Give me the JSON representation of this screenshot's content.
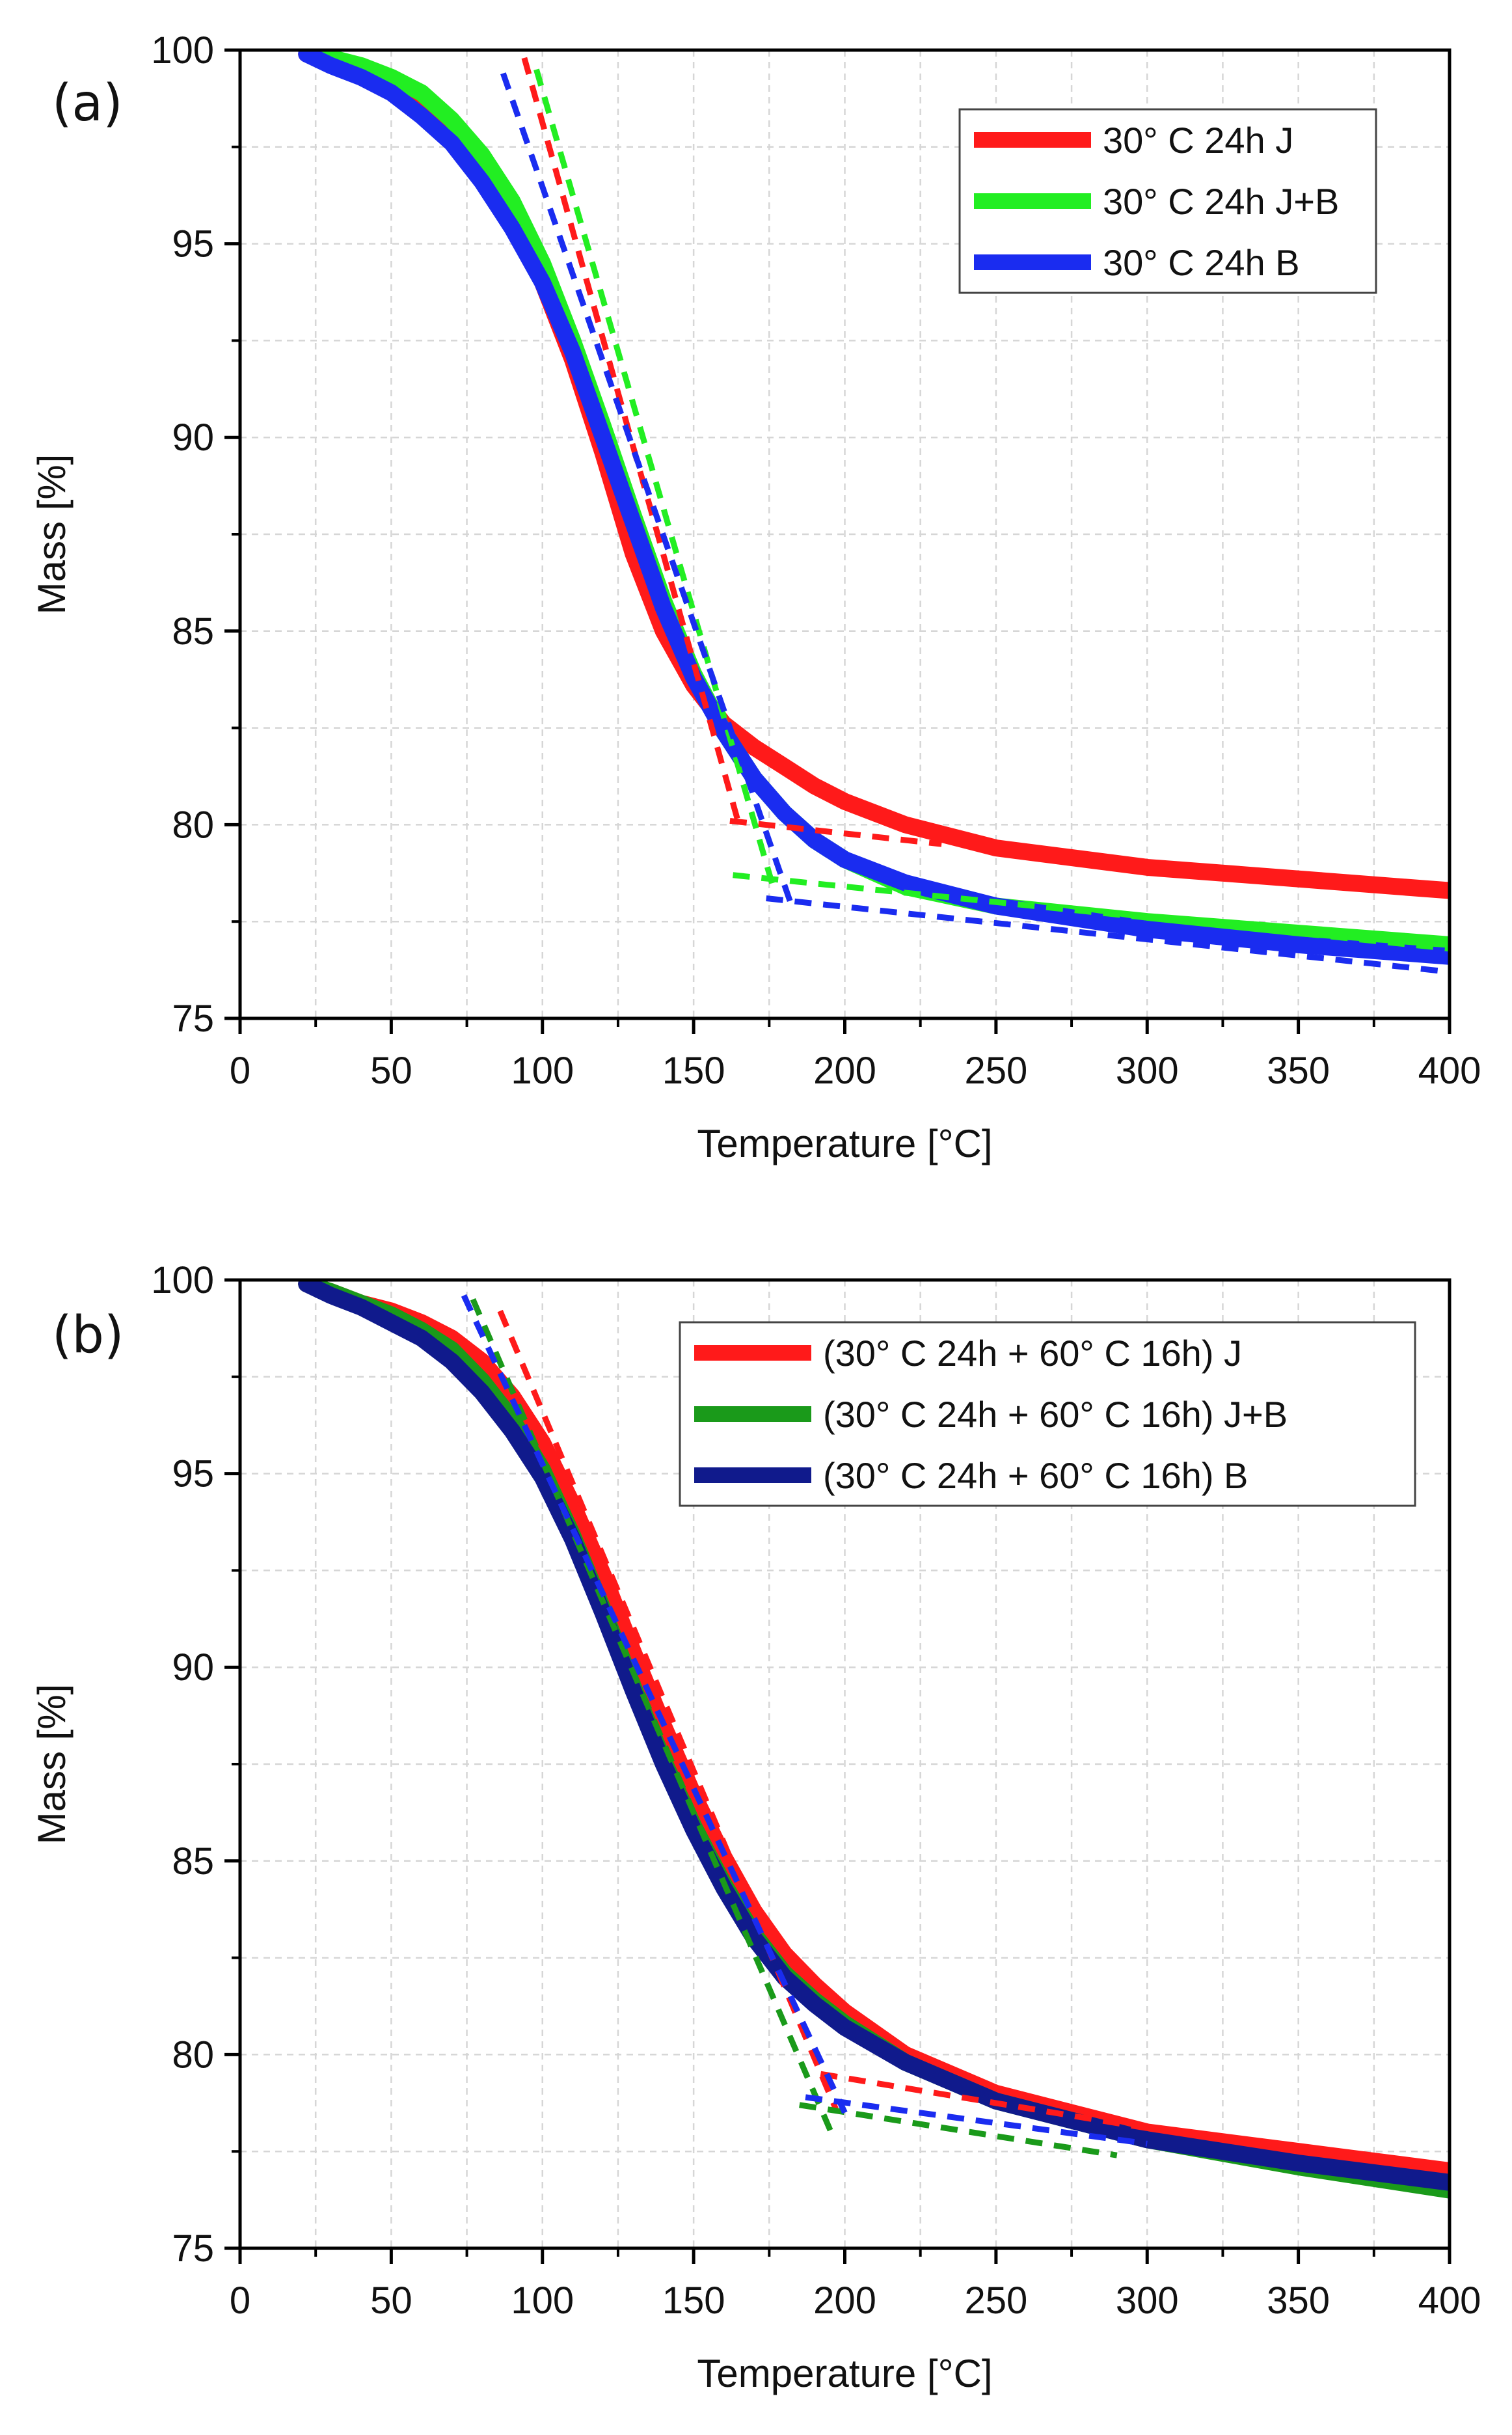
{
  "chart_data": [
    {
      "type": "line",
      "panel_label": "(a)",
      "xlabel": "Temperature [°C]",
      "ylabel": "Mass [%]",
      "xlim": [
        0,
        400
      ],
      "ylim": [
        75,
        100
      ],
      "xticks": [
        0,
        50,
        100,
        150,
        200,
        250,
        300,
        350,
        400
      ],
      "yticks": [
        75,
        80,
        85,
        90,
        95,
        100
      ],
      "grid": true,
      "legend_position": "top-right",
      "series": [
        {
          "name": "30° C 24h J",
          "color": "#ff1a1a",
          "x": [
            22,
            30,
            40,
            50,
            60,
            70,
            80,
            90,
            100,
            110,
            120,
            130,
            140,
            150,
            160,
            170,
            180,
            190,
            200,
            220,
            250,
            300,
            350,
            400
          ],
          "y": [
            99.9,
            99.7,
            99.4,
            99.0,
            98.5,
            97.8,
            96.9,
            95.6,
            94.0,
            92.0,
            89.6,
            87.0,
            85.0,
            83.6,
            82.6,
            82.0,
            81.5,
            81.0,
            80.6,
            80.0,
            79.4,
            78.9,
            78.6,
            78.3
          ]
        },
        {
          "name": "30° C 24h J+B",
          "color": "#22ee22",
          "x": [
            22,
            30,
            40,
            50,
            60,
            70,
            80,
            90,
            100,
            110,
            120,
            130,
            140,
            150,
            160,
            170,
            180,
            190,
            200,
            220,
            250,
            300,
            350,
            400
          ],
          "y": [
            100.0,
            99.8,
            99.6,
            99.3,
            98.9,
            98.2,
            97.3,
            96.1,
            94.5,
            92.5,
            90.3,
            88.0,
            85.8,
            83.9,
            82.4,
            81.2,
            80.3,
            79.6,
            79.1,
            78.4,
            77.9,
            77.5,
            77.2,
            76.9
          ]
        },
        {
          "name": "30° C 24h B",
          "color": "#1a2cf0",
          "x": [
            22,
            30,
            40,
            50,
            60,
            70,
            80,
            90,
            100,
            110,
            120,
            130,
            140,
            150,
            160,
            170,
            180,
            190,
            200,
            220,
            250,
            300,
            350,
            400
          ],
          "y": [
            99.9,
            99.6,
            99.3,
            98.9,
            98.3,
            97.6,
            96.6,
            95.4,
            94.0,
            92.2,
            90.0,
            87.8,
            85.6,
            83.8,
            82.4,
            81.2,
            80.3,
            79.6,
            79.1,
            78.5,
            77.9,
            77.3,
            76.9,
            76.6
          ]
        }
      ],
      "tangent_lines": [
        {
          "color": "#ff1a1a",
          "x": [
            94,
            165
          ],
          "y": [
            99.8,
            80.0
          ]
        },
        {
          "color": "#ff1a1a",
          "x": [
            162,
            232
          ],
          "y": [
            80.1,
            79.5
          ]
        },
        {
          "color": "#22ee22",
          "x": [
            98,
            177
          ],
          "y": [
            99.5,
            78.2
          ]
        },
        {
          "color": "#22ee22",
          "x": [
            163,
            400
          ],
          "y": [
            78.7,
            76.8
          ]
        },
        {
          "color": "#1a2cf0",
          "x": [
            87,
            182
          ],
          "y": [
            99.4,
            78.0
          ]
        },
        {
          "color": "#1a2cf0",
          "x": [
            174,
            400
          ],
          "y": [
            78.1,
            76.2
          ]
        }
      ]
    },
    {
      "type": "line",
      "panel_label": "(b)",
      "xlabel": "Temperature [°C]",
      "ylabel": "Mass [%]",
      "xlim": [
        0,
        400
      ],
      "ylim": [
        75,
        100
      ],
      "xticks": [
        0,
        50,
        100,
        150,
        200,
        250,
        300,
        350,
        400
      ],
      "yticks": [
        75,
        80,
        85,
        90,
        95,
        100
      ],
      "grid": true,
      "legend_position": "top-right",
      "series": [
        {
          "name": "(30° C 24h + 60° C 16h) J",
          "color": "#ff1a1a",
          "x": [
            22,
            30,
            40,
            50,
            60,
            70,
            80,
            90,
            100,
            110,
            120,
            130,
            140,
            150,
            160,
            170,
            180,
            190,
            200,
            220,
            250,
            300,
            350,
            400
          ],
          "y": [
            99.9,
            99.7,
            99.4,
            99.2,
            98.9,
            98.5,
            97.9,
            97.0,
            95.8,
            94.2,
            92.4,
            90.4,
            88.5,
            86.7,
            85.1,
            83.7,
            82.6,
            81.8,
            81.1,
            80.0,
            79.0,
            78.0,
            77.5,
            77.0
          ]
        },
        {
          "name": "(30° C 24h + 60° C 16h) J+B",
          "color": "#1a9a1a",
          "x": [
            22,
            30,
            40,
            50,
            60,
            70,
            80,
            90,
            100,
            110,
            120,
            130,
            140,
            150,
            160,
            170,
            180,
            190,
            200,
            220,
            250,
            300,
            350,
            400
          ],
          "y": [
            99.9,
            99.7,
            99.4,
            99.1,
            98.7,
            98.2,
            97.4,
            96.4,
            95.1,
            93.4,
            91.5,
            89.5,
            87.6,
            85.9,
            84.4,
            83.1,
            82.1,
            81.4,
            80.8,
            79.8,
            78.8,
            77.8,
            77.1,
            76.5
          ]
        },
        {
          "name": "(30° C 24h + 60° C 16h) B",
          "color": "#101a8c",
          "x": [
            22,
            30,
            40,
            50,
            60,
            70,
            80,
            90,
            100,
            110,
            120,
            130,
            140,
            150,
            160,
            170,
            180,
            190,
            200,
            220,
            250,
            300,
            350,
            400
          ],
          "y": [
            99.9,
            99.6,
            99.3,
            98.9,
            98.5,
            97.9,
            97.1,
            96.1,
            94.9,
            93.3,
            91.4,
            89.4,
            87.5,
            85.8,
            84.3,
            83.0,
            82.0,
            81.3,
            80.7,
            79.8,
            78.8,
            77.8,
            77.2,
            76.7
          ]
        }
      ],
      "tangent_lines": [
        {
          "color": "#ff1a1a",
          "x": [
            86,
            197
          ],
          "y": [
            99.2,
            78.6
          ]
        },
        {
          "color": "#ff1a1a",
          "x": [
            192,
            300
          ],
          "y": [
            79.5,
            78.1
          ]
        },
        {
          "color": "#1a9a1a",
          "x": [
            77,
            196
          ],
          "y": [
            99.5,
            77.9
          ]
        },
        {
          "color": "#1a9a1a",
          "x": [
            185,
            290
          ],
          "y": [
            78.7,
            77.4
          ]
        },
        {
          "color": "#1a2cf0",
          "x": [
            74,
            200
          ],
          "y": [
            99.6,
            78.5
          ]
        },
        {
          "color": "#1a2cf0",
          "x": [
            187,
            300
          ],
          "y": [
            78.9,
            77.7
          ]
        }
      ]
    }
  ]
}
